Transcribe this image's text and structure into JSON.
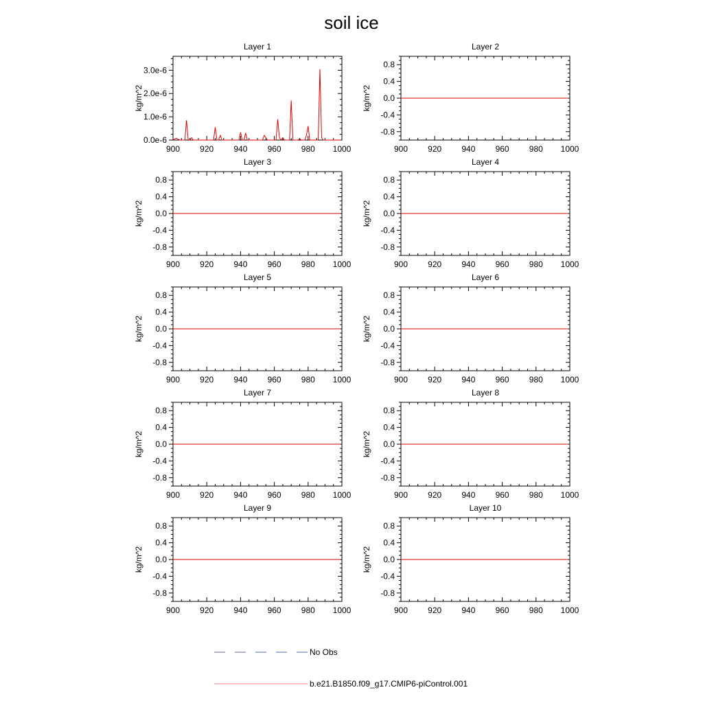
{
  "figure": {
    "title": "soil ice"
  },
  "chart_data": [
    {
      "type": "line",
      "title": "Layer 1",
      "ylabel": "kg/m^2",
      "xlim": [
        900,
        1000
      ],
      "ylim": [
        0,
        3.6e-06
      ],
      "xticks": [
        900,
        920,
        940,
        960,
        980,
        1000
      ],
      "xtick_labels": [
        "900",
        "920",
        "940",
        "960",
        "980",
        "1000"
      ],
      "yticks": [
        0,
        1e-06,
        2e-06,
        3e-06
      ],
      "ytick_labels": [
        "0.0e-6",
        "1.0e-6",
        "2.0e-6",
        "3.0e-6"
      ],
      "series": [
        {
          "name": "b.e21.B1850.f09_g17.CMIP6-piControl.001",
          "color": "#e00000",
          "x": [
            900,
            901,
            902,
            903,
            904,
            905,
            906,
            907,
            908,
            909,
            910,
            911,
            912,
            913,
            914,
            915,
            916,
            917,
            918,
            919,
            920,
            921,
            922,
            923,
            924,
            925,
            926,
            927,
            928,
            929,
            930,
            931,
            932,
            933,
            934,
            935,
            936,
            937,
            938,
            939,
            940,
            941,
            942,
            943,
            944,
            945,
            946,
            947,
            948,
            949,
            950,
            951,
            952,
            953,
            954,
            955,
            956,
            957,
            958,
            959,
            960,
            961,
            962,
            963,
            964,
            965,
            966,
            967,
            968,
            969,
            970,
            971,
            972,
            973,
            974,
            975,
            976,
            977,
            978,
            979,
            980,
            981,
            982,
            983,
            984,
            985,
            986,
            987,
            988,
            989,
            990,
            991,
            992,
            993,
            994,
            995,
            996,
            997,
            998,
            999
          ],
          "y": [
            0,
            5e-08,
            8e-08,
            3e-08,
            0,
            0,
            0,
            0,
            8.5e-07,
            1e-08,
            0,
            1e-07,
            0,
            0,
            0,
            0,
            0,
            0,
            0,
            0,
            0,
            0,
            0,
            0,
            0,
            5.5e-07,
            0,
            0,
            2e-07,
            0,
            0,
            0,
            0,
            0,
            0,
            0,
            0,
            0,
            0,
            0,
            3.3e-07,
            0,
            0,
            3e-07,
            0,
            0,
            0,
            0,
            0,
            0,
            0,
            0,
            0,
            0,
            2e-07,
            1e-07,
            0,
            0,
            0,
            0,
            0,
            0,
            9e-07,
            1e-07,
            0,
            1e-07,
            0,
            0,
            0,
            0,
            1.7e-06,
            0,
            0,
            0,
            0,
            5e-08,
            0,
            0,
            0,
            2e-07,
            6e-07,
            0,
            0,
            0,
            0,
            0,
            0,
            3.05e-06,
            1e-07,
            0,
            0,
            0,
            0,
            0,
            0,
            0,
            0,
            0,
            0,
            0
          ]
        }
      ]
    },
    {
      "type": "line",
      "title": "Layer 2",
      "ylabel": "kg/m^2",
      "xlim": [
        900,
        1000
      ],
      "ylim": [
        -1,
        1
      ],
      "xticks": [
        900,
        920,
        940,
        960,
        980,
        1000
      ],
      "xtick_labels": [
        "900",
        "920",
        "940",
        "960",
        "980",
        "1000"
      ],
      "yticks": [
        -0.8,
        -0.4,
        0,
        0.4,
        0.8
      ],
      "ytick_labels": [
        "-0.8",
        "-0.4",
        "0.0",
        "0.4",
        "0.8"
      ],
      "series": [
        {
          "name": "b.e21.B1850.f09_g17.CMIP6-piControl.001",
          "color": "#e00000",
          "x": [
            900,
            999
          ],
          "y": [
            0,
            0
          ]
        }
      ]
    },
    {
      "type": "line",
      "title": "Layer 3",
      "ylabel": "kg/m^2",
      "xlim": [
        900,
        1000
      ],
      "ylim": [
        -1,
        1
      ],
      "xticks": [
        900,
        920,
        940,
        960,
        980,
        1000
      ],
      "xtick_labels": [
        "900",
        "920",
        "940",
        "960",
        "980",
        "1000"
      ],
      "yticks": [
        -0.8,
        -0.4,
        0,
        0.4,
        0.8
      ],
      "ytick_labels": [
        "-0.8",
        "-0.4",
        "0.0",
        "0.4",
        "0.8"
      ],
      "series": [
        {
          "name": "b.e21.B1850.f09_g17.CMIP6-piControl.001",
          "color": "#e00000",
          "x": [
            900,
            999
          ],
          "y": [
            0,
            0
          ]
        }
      ]
    },
    {
      "type": "line",
      "title": "Layer 4",
      "ylabel": "kg/m^2",
      "xlim": [
        900,
        1000
      ],
      "ylim": [
        -1,
        1
      ],
      "xticks": [
        900,
        920,
        940,
        960,
        980,
        1000
      ],
      "xtick_labels": [
        "900",
        "920",
        "940",
        "960",
        "980",
        "1000"
      ],
      "yticks": [
        -0.8,
        -0.4,
        0,
        0.4,
        0.8
      ],
      "ytick_labels": [
        "-0.8",
        "-0.4",
        "0.0",
        "0.4",
        "0.8"
      ],
      "series": [
        {
          "name": "b.e21.B1850.f09_g17.CMIP6-piControl.001",
          "color": "#e00000",
          "x": [
            900,
            999
          ],
          "y": [
            0,
            0
          ]
        }
      ]
    },
    {
      "type": "line",
      "title": "Layer 5",
      "ylabel": "kg/m^2",
      "xlim": [
        900,
        1000
      ],
      "ylim": [
        -1,
        1
      ],
      "xticks": [
        900,
        920,
        940,
        960,
        980,
        1000
      ],
      "xtick_labels": [
        "900",
        "920",
        "940",
        "960",
        "980",
        "1000"
      ],
      "yticks": [
        -0.8,
        -0.4,
        0,
        0.4,
        0.8
      ],
      "ytick_labels": [
        "-0.8",
        "-0.4",
        "0.0",
        "0.4",
        "0.8"
      ],
      "series": [
        {
          "name": "b.e21.B1850.f09_g17.CMIP6-piControl.001",
          "color": "#e00000",
          "x": [
            900,
            999
          ],
          "y": [
            0,
            0
          ]
        }
      ]
    },
    {
      "type": "line",
      "title": "Layer 6",
      "ylabel": "kg/m^2",
      "xlim": [
        900,
        1000
      ],
      "ylim": [
        -1,
        1
      ],
      "xticks": [
        900,
        920,
        940,
        960,
        980,
        1000
      ],
      "xtick_labels": [
        "900",
        "920",
        "940",
        "960",
        "980",
        "1000"
      ],
      "yticks": [
        -0.8,
        -0.4,
        0,
        0.4,
        0.8
      ],
      "ytick_labels": [
        "-0.8",
        "-0.4",
        "0.0",
        "0.4",
        "0.8"
      ],
      "series": [
        {
          "name": "b.e21.B1850.f09_g17.CMIP6-piControl.001",
          "color": "#e00000",
          "x": [
            900,
            999
          ],
          "y": [
            0,
            0
          ]
        }
      ]
    },
    {
      "type": "line",
      "title": "Layer 7",
      "ylabel": "kg/m^2",
      "xlim": [
        900,
        1000
      ],
      "ylim": [
        -1,
        1
      ],
      "xticks": [
        900,
        920,
        940,
        960,
        980,
        1000
      ],
      "xtick_labels": [
        "900",
        "920",
        "940",
        "960",
        "980",
        "1000"
      ],
      "yticks": [
        -0.8,
        -0.4,
        0,
        0.4,
        0.8
      ],
      "ytick_labels": [
        "-0.8",
        "-0.4",
        "0.0",
        "0.4",
        "0.8"
      ],
      "series": [
        {
          "name": "b.e21.B1850.f09_g17.CMIP6-piControl.001",
          "color": "#e00000",
          "x": [
            900,
            999
          ],
          "y": [
            0,
            0
          ]
        }
      ]
    },
    {
      "type": "line",
      "title": "Layer 8",
      "ylabel": "kg/m^2",
      "xlim": [
        900,
        1000
      ],
      "ylim": [
        -1,
        1
      ],
      "xticks": [
        900,
        920,
        940,
        960,
        980,
        1000
      ],
      "xtick_labels": [
        "900",
        "920",
        "940",
        "960",
        "980",
        "1000"
      ],
      "yticks": [
        -0.8,
        -0.4,
        0,
        0.4,
        0.8
      ],
      "ytick_labels": [
        "-0.8",
        "-0.4",
        "0.0",
        "0.4",
        "0.8"
      ],
      "series": [
        {
          "name": "b.e21.B1850.f09_g17.CMIP6-piControl.001",
          "color": "#e00000",
          "x": [
            900,
            999
          ],
          "y": [
            0,
            0
          ]
        }
      ]
    },
    {
      "type": "line",
      "title": "Layer 9",
      "ylabel": "kg/m^2",
      "xlim": [
        900,
        1000
      ],
      "ylim": [
        -1,
        1
      ],
      "xticks": [
        900,
        920,
        940,
        960,
        980,
        1000
      ],
      "xtick_labels": [
        "900",
        "920",
        "940",
        "960",
        "980",
        "1000"
      ],
      "yticks": [
        -0.8,
        -0.4,
        0,
        0.4,
        0.8
      ],
      "ytick_labels": [
        "-0.8",
        "-0.4",
        "0.0",
        "0.4",
        "0.8"
      ],
      "series": [
        {
          "name": "b.e21.B1850.f09_g17.CMIP6-piControl.001",
          "color": "#e00000",
          "x": [
            900,
            999
          ],
          "y": [
            0,
            0
          ]
        }
      ]
    },
    {
      "type": "line",
      "title": "Layer 10",
      "ylabel": "kg/m^2",
      "xlim": [
        900,
        1000
      ],
      "ylim": [
        -1,
        1
      ],
      "xticks": [
        900,
        920,
        940,
        960,
        980,
        1000
      ],
      "xtick_labels": [
        "900",
        "920",
        "940",
        "960",
        "980",
        "1000"
      ],
      "yticks": [
        -0.8,
        -0.4,
        0,
        0.4,
        0.8
      ],
      "ytick_labels": [
        "-0.8",
        "-0.4",
        "0.0",
        "0.4",
        "0.8"
      ],
      "series": [
        {
          "name": "b.e21.B1850.f09_g17.CMIP6-piControl.001",
          "color": "#e00000",
          "x": [
            900,
            999
          ],
          "y": [
            0,
            0
          ]
        }
      ]
    }
  ],
  "legend": {
    "entries": [
      {
        "label": "No Obs",
        "color": "#5566aa",
        "style": "dashed"
      },
      {
        "label": "b.e21.B1850.f09_g17.CMIP6-piControl.001",
        "color": "#e88080",
        "style": "solid"
      }
    ]
  }
}
